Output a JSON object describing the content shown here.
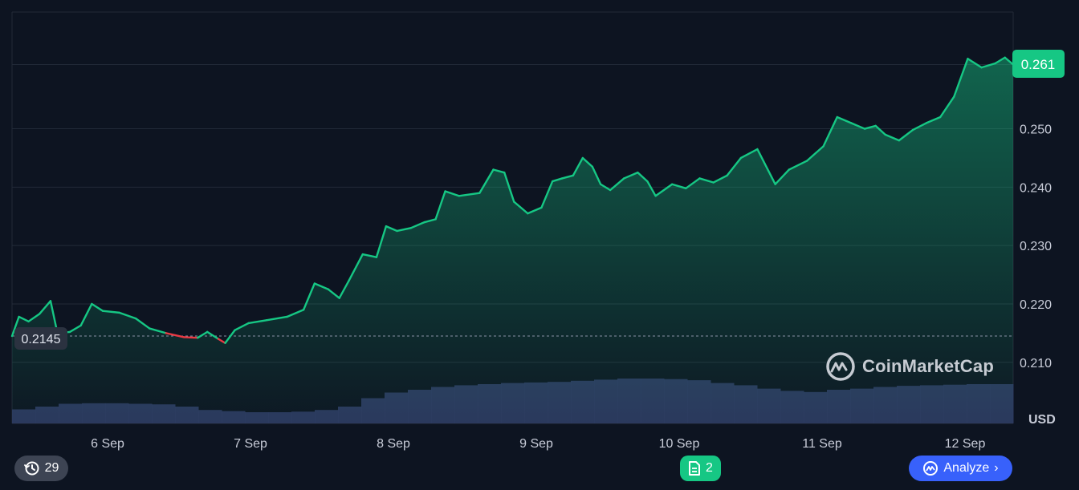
{
  "chart_data": {
    "type": "area",
    "x_labels": [
      "6 Sep",
      "7 Sep",
      "8 Sep",
      "9 Sep",
      "10 Sep",
      "11 Sep",
      "12 Sep"
    ],
    "y_ticks": [
      "0.261",
      "0.250",
      "0.240",
      "0.230",
      "0.220",
      "0.210"
    ],
    "ylim": [
      0.2095,
      0.2645
    ],
    "unit": "USD",
    "baseline": 0.2145,
    "baseline_label": "0.2145",
    "current_price": 0.261,
    "current_label": "0.261",
    "up_color": "#16c784",
    "down_color": "#ea3943",
    "volume_color": "#2f3a63",
    "series": [
      {
        "x": 0.0,
        "y": 0.2145
      },
      {
        "x": 0.05,
        "y": 0.2178
      },
      {
        "x": 0.12,
        "y": 0.217
      },
      {
        "x": 0.2,
        "y": 0.2183
      },
      {
        "x": 0.28,
        "y": 0.2205
      },
      {
        "x": 0.33,
        "y": 0.215
      },
      {
        "x": 0.42,
        "y": 0.2152
      },
      {
        "x": 0.5,
        "y": 0.2163
      },
      {
        "x": 0.58,
        "y": 0.22
      },
      {
        "x": 0.66,
        "y": 0.2188
      },
      {
        "x": 0.78,
        "y": 0.2185
      },
      {
        "x": 0.9,
        "y": 0.2175
      },
      {
        "x": 1.0,
        "y": 0.2158
      },
      {
        "x": 1.12,
        "y": 0.215
      },
      {
        "x": 1.25,
        "y": 0.2143
      },
      {
        "x": 1.35,
        "y": 0.2142
      },
      {
        "x": 1.42,
        "y": 0.2152
      },
      {
        "x": 1.5,
        "y": 0.214
      },
      {
        "x": 1.55,
        "y": 0.2133
      },
      {
        "x": 1.62,
        "y": 0.2155
      },
      {
        "x": 1.72,
        "y": 0.2167
      },
      {
        "x": 1.85,
        "y": 0.2172
      },
      {
        "x": 2.0,
        "y": 0.2178
      },
      {
        "x": 2.12,
        "y": 0.219
      },
      {
        "x": 2.2,
        "y": 0.2235
      },
      {
        "x": 2.3,
        "y": 0.2225
      },
      {
        "x": 2.38,
        "y": 0.221
      },
      {
        "x": 2.45,
        "y": 0.224
      },
      {
        "x": 2.55,
        "y": 0.2285
      },
      {
        "x": 2.65,
        "y": 0.228
      },
      {
        "x": 2.72,
        "y": 0.2333
      },
      {
        "x": 2.8,
        "y": 0.2325
      },
      {
        "x": 2.9,
        "y": 0.233
      },
      {
        "x": 3.0,
        "y": 0.234
      },
      {
        "x": 3.08,
        "y": 0.2345
      },
      {
        "x": 3.15,
        "y": 0.2393
      },
      {
        "x": 3.25,
        "y": 0.2385
      },
      {
        "x": 3.4,
        "y": 0.239
      },
      {
        "x": 3.5,
        "y": 0.243
      },
      {
        "x": 3.58,
        "y": 0.2425
      },
      {
        "x": 3.65,
        "y": 0.2375
      },
      {
        "x": 3.75,
        "y": 0.2355
      },
      {
        "x": 3.85,
        "y": 0.2365
      },
      {
        "x": 3.93,
        "y": 0.241
      },
      {
        "x": 4.0,
        "y": 0.2415
      },
      {
        "x": 4.08,
        "y": 0.242
      },
      {
        "x": 4.15,
        "y": 0.245
      },
      {
        "x": 4.22,
        "y": 0.2435
      },
      {
        "x": 4.28,
        "y": 0.2405
      },
      {
        "x": 4.35,
        "y": 0.2395
      },
      {
        "x": 4.45,
        "y": 0.2415
      },
      {
        "x": 4.55,
        "y": 0.2425
      },
      {
        "x": 4.62,
        "y": 0.241
      },
      {
        "x": 4.68,
        "y": 0.2385
      },
      {
        "x": 4.8,
        "y": 0.2405
      },
      {
        "x": 4.9,
        "y": 0.2398
      },
      {
        "x": 5.0,
        "y": 0.2415
      },
      {
        "x": 5.1,
        "y": 0.2408
      },
      {
        "x": 5.2,
        "y": 0.242
      },
      {
        "x": 5.3,
        "y": 0.245
      },
      {
        "x": 5.42,
        "y": 0.2465
      },
      {
        "x": 5.5,
        "y": 0.2428
      },
      {
        "x": 5.55,
        "y": 0.2405
      },
      {
        "x": 5.65,
        "y": 0.243
      },
      {
        "x": 5.78,
        "y": 0.2445
      },
      {
        "x": 5.9,
        "y": 0.247
      },
      {
        "x": 6.0,
        "y": 0.252
      },
      {
        "x": 6.1,
        "y": 0.251
      },
      {
        "x": 6.2,
        "y": 0.25
      },
      {
        "x": 6.28,
        "y": 0.2505
      },
      {
        "x": 6.35,
        "y": 0.249
      },
      {
        "x": 6.45,
        "y": 0.248
      },
      {
        "x": 6.55,
        "y": 0.2498
      },
      {
        "x": 6.65,
        "y": 0.251
      },
      {
        "x": 6.75,
        "y": 0.252
      },
      {
        "x": 6.85,
        "y": 0.2555
      },
      {
        "x": 6.95,
        "y": 0.262
      },
      {
        "x": 7.05,
        "y": 0.2605
      },
      {
        "x": 7.15,
        "y": 0.2612
      },
      {
        "x": 7.22,
        "y": 0.2622
      },
      {
        "x": 7.28,
        "y": 0.261
      }
    ],
    "volume": [
      0.25,
      0.3,
      0.35,
      0.36,
      0.36,
      0.35,
      0.34,
      0.3,
      0.24,
      0.22,
      0.2,
      0.2,
      0.21,
      0.24,
      0.3,
      0.45,
      0.55,
      0.6,
      0.65,
      0.68,
      0.7,
      0.72,
      0.73,
      0.74,
      0.76,
      0.78,
      0.8,
      0.8,
      0.79,
      0.77,
      0.72,
      0.68,
      0.62,
      0.58,
      0.56,
      0.6,
      0.62,
      0.65,
      0.67,
      0.68,
      0.69,
      0.7,
      0.7
    ]
  },
  "logo": {
    "text": "CoinMarketCap"
  },
  "controls": {
    "history_count": "29",
    "news_count": "2",
    "analyze_label": "Analyze"
  }
}
